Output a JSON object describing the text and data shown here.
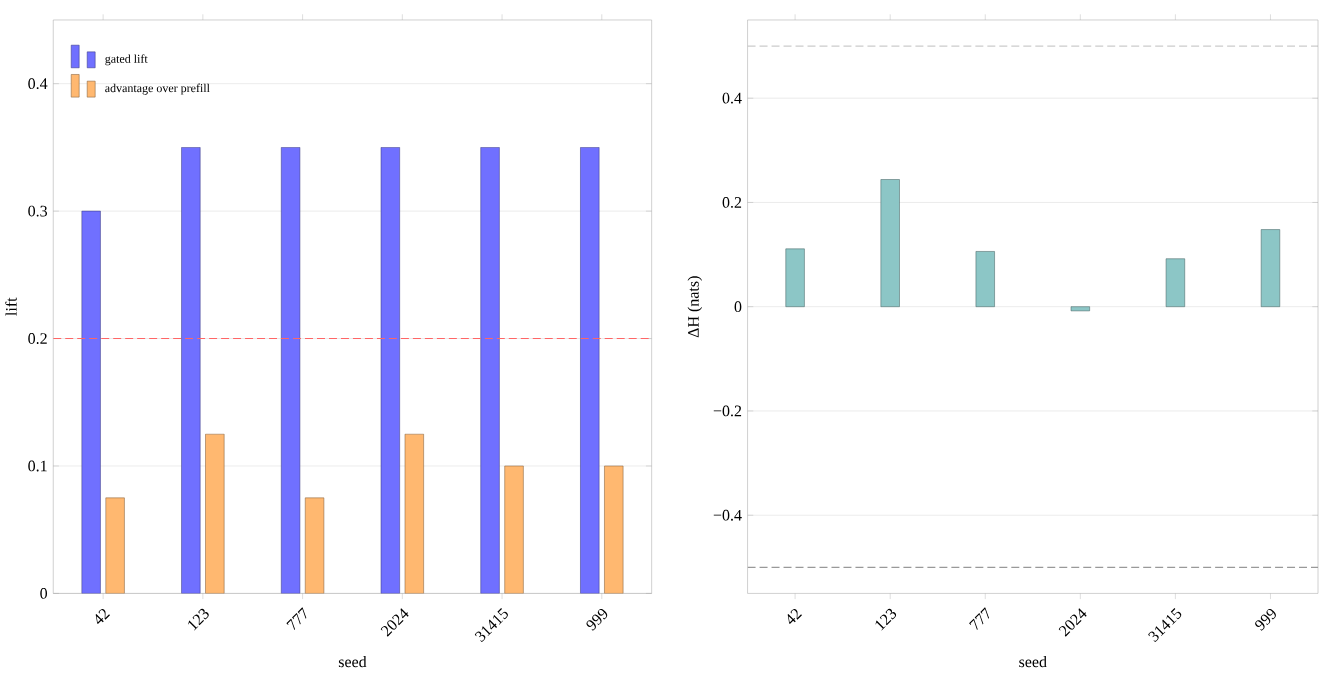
{
  "chart_data": [
    {
      "type": "bar",
      "xlabel": "seed",
      "ylabel": "lift",
      "categories": [
        "42",
        "123",
        "777",
        "2024",
        "31415",
        "999"
      ],
      "series": [
        {
          "name": "gated lift",
          "color": "#7070ff",
          "values": [
            0.3,
            0.35,
            0.35,
            0.35,
            0.35,
            0.35
          ]
        },
        {
          "name": "advantage over prefill",
          "color": "#ffb870",
          "values": [
            0.075,
            0.125,
            0.075,
            0.125,
            0.1,
            0.1
          ]
        }
      ],
      "ylim": [
        0,
        0.45
      ],
      "yticks": [
        0,
        0.1,
        0.2,
        0.3,
        0.4
      ],
      "grid": "y",
      "legend": "top left",
      "ref_lines": [
        {
          "axis": "y",
          "value": 0.2,
          "color": "#ff6666",
          "line_style": "dashed"
        }
      ]
    },
    {
      "type": "bar",
      "xlabel": "seed",
      "ylabel": "ΔH (nats)",
      "categories": [
        "42",
        "123",
        "777",
        "2024",
        "31415",
        "999"
      ],
      "series": [
        {
          "color": "#8cc6c6",
          "values": [
            0.111,
            0.244,
            0.106,
            -0.008,
            0.092,
            0.148
          ]
        }
      ],
      "ylim": [
        -0.55,
        0.55
      ],
      "yticks": [
        {
          "value": -0.4,
          "label": "−0.4"
        },
        {
          "value": -0.2,
          "label": "−0.2"
        },
        0,
        0.2,
        0.4
      ],
      "grid": "y",
      "ref_lines": [
        {
          "axis": "y",
          "value": 0.5,
          "color": "#999999",
          "line_style": "dashed"
        },
        {
          "axis": "y",
          "value": -0.5,
          "color": "#999999",
          "line_style": "dashed"
        }
      ]
    }
  ]
}
